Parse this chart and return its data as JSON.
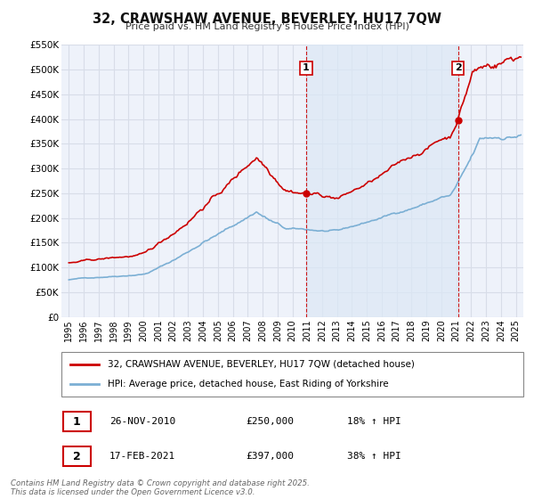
{
  "title": "32, CRAWSHAW AVENUE, BEVERLEY, HU17 7QW",
  "subtitle": "Price paid vs. HM Land Registry's House Price Index (HPI)",
  "background_color": "#ffffff",
  "plot_bg_color": "#eef2fa",
  "grid_color": "#d8dde8",
  "shade_color": "#dce8f5",
  "ylim": [
    0,
    550000
  ],
  "yticks": [
    0,
    50000,
    100000,
    150000,
    200000,
    250000,
    300000,
    350000,
    400000,
    450000,
    500000,
    550000
  ],
  "ytick_labels": [
    "£0",
    "£50K",
    "£100K",
    "£150K",
    "£200K",
    "£250K",
    "£300K",
    "£350K",
    "£400K",
    "£450K",
    "£500K",
    "£550K"
  ],
  "xlim_start": 1994.5,
  "xlim_end": 2025.5,
  "xticks": [
    1995,
    1996,
    1997,
    1998,
    1999,
    2000,
    2001,
    2002,
    2003,
    2004,
    2005,
    2006,
    2007,
    2008,
    2009,
    2010,
    2011,
    2012,
    2013,
    2014,
    2015,
    2016,
    2017,
    2018,
    2019,
    2020,
    2021,
    2022,
    2023,
    2024,
    2025
  ],
  "property_color": "#cc0000",
  "hpi_color": "#7bafd4",
  "vline_color": "#cc0000",
  "sale1_x": 2010.917,
  "sale1_price": 250000,
  "sale2_x": 2021.12,
  "sale2_price": 397000,
  "legend_line1": "32, CRAWSHAW AVENUE, BEVERLEY, HU17 7QW (detached house)",
  "legend_line2": "HPI: Average price, detached house, East Riding of Yorkshire",
  "info_rows": [
    {
      "label": "1",
      "date": "26-NOV-2010",
      "price": "£250,000",
      "change": "18% ↑ HPI"
    },
    {
      "label": "2",
      "date": "17-FEB-2021",
      "price": "£397,000",
      "change": "38% ↑ HPI"
    }
  ],
  "footer": "Contains HM Land Registry data © Crown copyright and database right 2025.\nThis data is licensed under the Open Government Licence v3.0."
}
